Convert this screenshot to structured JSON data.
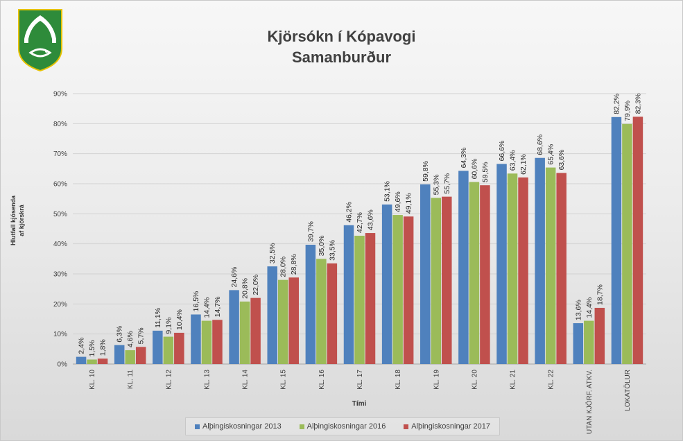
{
  "chart_data": {
    "type": "bar",
    "title": "Kjörsókn  í Kópavogi",
    "subtitle": "Samanburður",
    "xlabel": "Tími",
    "ylabel_line1": "Hlutfall kjósenda",
    "ylabel_line2": "af kjörskrá",
    "ylim": [
      0,
      90
    ],
    "yticks": [
      "0%",
      "10%",
      "20%",
      "30%",
      "40%",
      "50%",
      "60%",
      "70%",
      "80%",
      "90%"
    ],
    "grid": true,
    "legend_position": "bottom",
    "categories": [
      "KL. 10",
      "KL. 11",
      "KL. 12",
      "KL. 13",
      "KL. 14",
      "KL. 15",
      "KL. 16",
      "KL. 17",
      "KL. 18",
      "KL. 19",
      "KL. 20",
      "KL. 21",
      "KL. 22",
      "UTAN KJÖRF. ATKV.",
      "LOKATÖLUR"
    ],
    "series": [
      {
        "name": "Alþingiskosningar 2013",
        "color": "#4f81bd",
        "values": [
          2.4,
          6.3,
          11.1,
          16.5,
          24.6,
          32.5,
          39.7,
          46.2,
          53.1,
          59.8,
          64.3,
          66.6,
          68.6,
          13.6,
          82.2
        ],
        "labels": [
          "2,4%",
          "6,3%",
          "11,1%",
          "16,5%",
          "24,6%",
          "32,5%",
          "39,7%",
          "46,2%",
          "53,1%",
          "59,8%",
          "64,3%",
          "66,6%",
          "68,6%",
          "13,6%",
          "82,2%"
        ]
      },
      {
        "name": "Alþingiskosningar 2016",
        "color": "#9bbb59",
        "values": [
          1.5,
          4.6,
          9.1,
          14.4,
          20.8,
          28.0,
          35.0,
          42.7,
          49.6,
          55.3,
          60.6,
          63.4,
          65.4,
          14.4,
          79.9
        ],
        "labels": [
          "1,5%",
          "4,6%",
          "9,1%",
          "14,4%",
          "20,8%",
          "28,0%",
          "35,0%",
          "42,7%",
          "49,6%",
          "55,3%",
          "60,6%",
          "63,4%",
          "65,4%",
          "14,4%",
          "79,9%"
        ]
      },
      {
        "name": "Alþingiskosningar 2017",
        "color": "#c0504d",
        "values": [
          1.8,
          5.7,
          10.4,
          14.7,
          22.0,
          28.8,
          33.5,
          43.6,
          49.1,
          55.7,
          59.5,
          62.1,
          63.6,
          18.7,
          82.3
        ],
        "labels": [
          "1,8%",
          "5,7%",
          "10,4%",
          "14,7%",
          "22,0%",
          "28,8%",
          "33,5%",
          "43,6%",
          "49,1%",
          "55,7%",
          "59,5%",
          "62,1%",
          "63,6%",
          "18,7%",
          "82,3%"
        ]
      }
    ]
  },
  "logo": {
    "primary_color": "#2e8b3a",
    "secondary_color": "#ffffff",
    "icon": "kopavogur-coat-of-arms-icon"
  }
}
